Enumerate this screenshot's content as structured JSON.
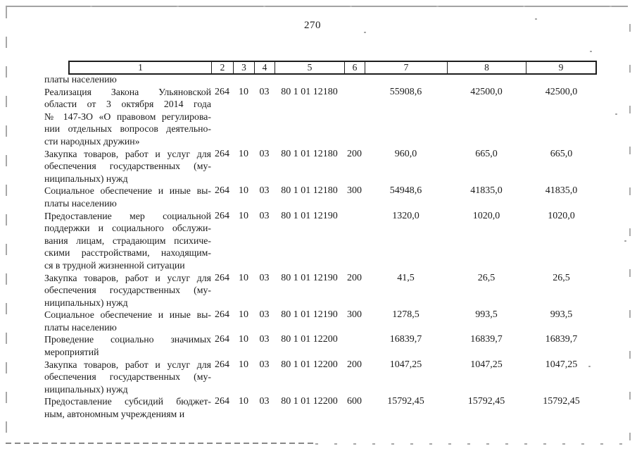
{
  "page": {
    "number": "270"
  },
  "colors": {
    "ink": "#1b1b1b",
    "paper": "#ffffff",
    "scan_artifact": "#a8a8a8"
  },
  "table": {
    "column_numbers": [
      "1",
      "2",
      "3",
      "4",
      "5",
      "6",
      "7",
      "8",
      "9"
    ],
    "rows": [
      {
        "name_lines": [
          "платы населению"
        ],
        "col2": "",
        "col3": "",
        "col4": "",
        "col5": "",
        "col6": "",
        "col7": "",
        "col8": "",
        "col9": ""
      },
      {
        "name_lines": [
          "Реализация Закона Ульяновской",
          "области от 3 октября 2014 года",
          "№ 147-ЗО «О правовом регулирова-",
          "нии отдельных вопросов деятельно-",
          "сти народных дружин»"
        ],
        "col2": "264",
        "col3": "10",
        "col4": "03",
        "col5": "80 1 01 12180",
        "col6": "",
        "col7": "55908,6",
        "col8": "42500,0",
        "col9": "42500,0"
      },
      {
        "name_lines": [
          "Закупка товаров, работ и услуг для",
          "обеспечения государственных (му-",
          "ниципальных) нужд"
        ],
        "col2": "264",
        "col3": "10",
        "col4": "03",
        "col5": "80 1 01 12180",
        "col6": "200",
        "col7": "960,0",
        "col8": "665,0",
        "col9": "665,0"
      },
      {
        "name_lines": [
          "Социальное обеспечение и иные вы-",
          "платы населению"
        ],
        "col2": "264",
        "col3": "10",
        "col4": "03",
        "col5": "80 1 01 12180",
        "col6": "300",
        "col7": "54948,6",
        "col8": "41835,0",
        "col9": "41835,0"
      },
      {
        "name_lines": [
          "Предоставление мер социальной",
          "поддержки и социального обслужи-",
          "вания лицам, страдающим психиче-",
          "скими расстройствами, находящим-",
          "ся в трудной жизненной ситуации"
        ],
        "col2": "264",
        "col3": "10",
        "col4": "03",
        "col5": "80 1 01 12190",
        "col6": "",
        "col7": "1320,0",
        "col8": "1020,0",
        "col9": "1020,0"
      },
      {
        "name_lines": [
          "Закупка товаров, работ и услуг для",
          "обеспечения государственных (му-",
          "ниципальных) нужд"
        ],
        "col2": "264",
        "col3": "10",
        "col4": "03",
        "col5": "80 1 01 12190",
        "col6": "200",
        "col7": "41,5",
        "col8": "26,5",
        "col9": "26,5"
      },
      {
        "name_lines": [
          "Социальное обеспечение и иные вы-",
          "платы населению"
        ],
        "col2": "264",
        "col3": "10",
        "col4": "03",
        "col5": "80 1 01 12190",
        "col6": "300",
        "col7": "1278,5",
        "col8": "993,5",
        "col9": "993,5"
      },
      {
        "name_lines": [
          "Проведение социально значимых",
          "мероприятий"
        ],
        "col2": "264",
        "col3": "10",
        "col4": "03",
        "col5": "80 1 01 12200",
        "col6": "",
        "col7": "16839,7",
        "col8": "16839,7",
        "col9": "16839,7"
      },
      {
        "name_lines": [
          "Закупка товаров, работ и услуг для",
          "обеспечения государственных (му-",
          "ниципальных) нужд"
        ],
        "col2": "264",
        "col3": "10",
        "col4": "03",
        "col5": "80 1 01 12200",
        "col6": "200",
        "col7": "1047,25",
        "col8": "1047,25",
        "col9": "1047,25"
      },
      {
        "name_lines": [
          "Предоставление субсидий бюджет-",
          "ным, автономным учреждениям и"
        ],
        "col2": "264",
        "col3": "10",
        "col4": "03",
        "col5": "80 1 01 12200",
        "col6": "600",
        "col7": "15792,45",
        "col8": "15792,45",
        "col9": "15792,45"
      }
    ]
  }
}
